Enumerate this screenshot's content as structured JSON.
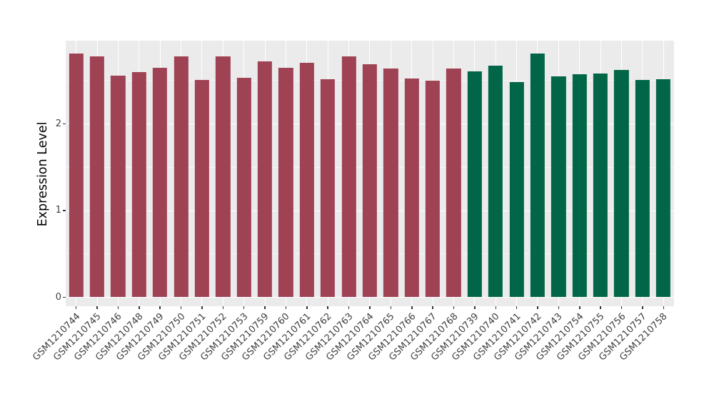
{
  "chart_data": {
    "type": "bar",
    "title": "",
    "xlabel": "",
    "ylabel": "Expression Level",
    "ylim": [
      0,
      2.96
    ],
    "yticks": [
      0,
      1,
      2
    ],
    "yticks_minor": [
      0.5,
      1.5,
      2.5
    ],
    "grid": true,
    "legend_position": "none",
    "categories": [
      "GSM1210744",
      "GSM1210745",
      "GSM1210746",
      "GSM1210748",
      "GSM1210749",
      "GSM1210750",
      "GSM1210751",
      "GSM1210752",
      "GSM1210753",
      "GSM1210759",
      "GSM1210760",
      "GSM1210761",
      "GSM1210762",
      "GSM1210763",
      "GSM1210764",
      "GSM1210765",
      "GSM1210766",
      "GSM1210767",
      "GSM1210768",
      "GSM1210739",
      "GSM1210740",
      "GSM1210741",
      "GSM1210742",
      "GSM1210743",
      "GSM1210754",
      "GSM1210755",
      "GSM1210756",
      "GSM1210757",
      "GSM1210758"
    ],
    "values": [
      2.81,
      2.77,
      2.55,
      2.59,
      2.64,
      2.77,
      2.5,
      2.77,
      2.53,
      2.72,
      2.64,
      2.7,
      2.51,
      2.77,
      2.68,
      2.63,
      2.52,
      2.49,
      2.63,
      2.6,
      2.67,
      2.48,
      2.81,
      2.54,
      2.57,
      2.58,
      2.62,
      2.5,
      2.51
    ],
    "group_split_index": 19,
    "group_colors": [
      "#9E4254",
      "#016648"
    ]
  },
  "style_colors": {
    "panel_background": "#EBEBEB",
    "grid_major": "#FFFFFF",
    "grid_minor": "#F6F6F6",
    "axis_text": "#404040",
    "axis_title": "#000000"
  }
}
